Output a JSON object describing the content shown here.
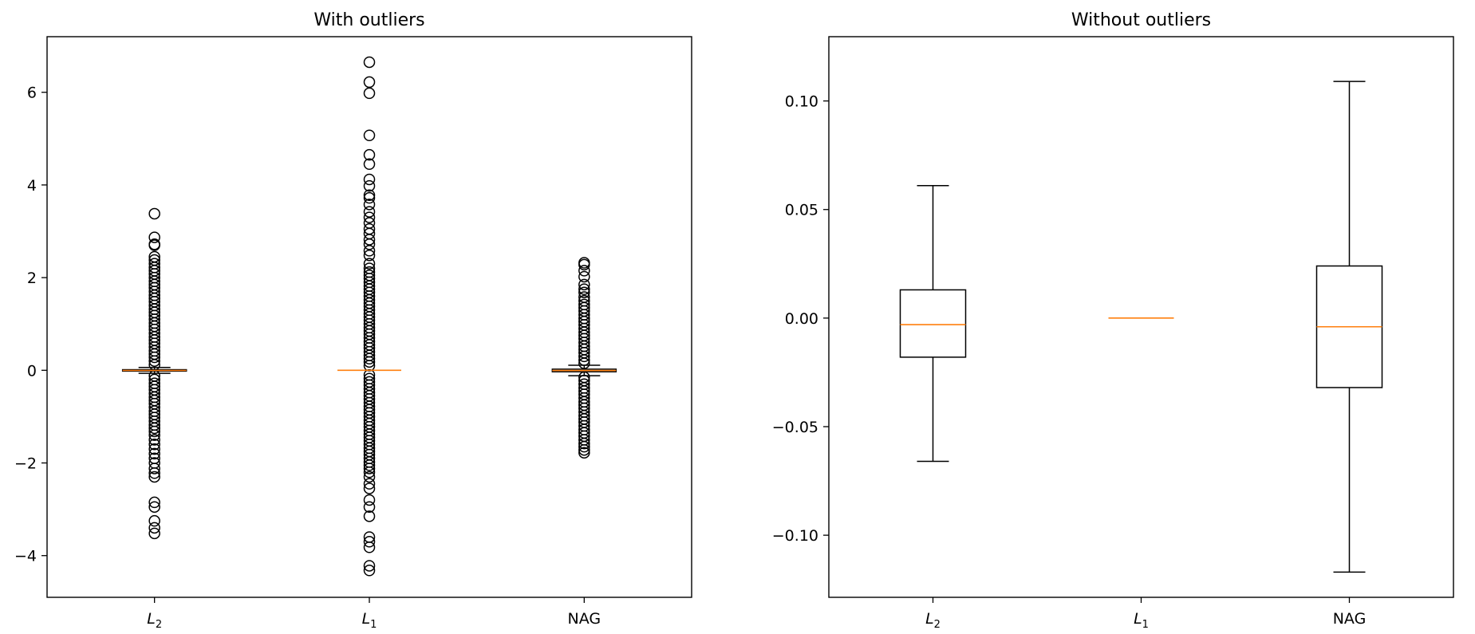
{
  "chart_data": [
    {
      "type": "box",
      "title": "With outliers",
      "xlabel": "",
      "ylabel": "",
      "categories": [
        {
          "base": "L",
          "sub": "2"
        },
        {
          "base": "L",
          "sub": "1"
        },
        {
          "base": "NAG",
          "sub": ""
        }
      ],
      "ylim": [
        -4.9,
        7.2
      ],
      "yticks": [
        -4,
        -2,
        0,
        2,
        4,
        6
      ],
      "ytick_labels": [
        "−4",
        "−2",
        "0",
        "2",
        "4",
        "6"
      ],
      "boxes": [
        {
          "q1": -0.018,
          "median": -0.003,
          "q3": 0.013,
          "whisker_low": -0.066,
          "whisker_high": 0.061,
          "fliers": [
            3.38,
            2.87,
            2.72,
            2.7,
            2.45,
            2.38,
            2.3,
            2.22,
            2.15,
            2.08,
            2.0,
            1.92,
            1.85,
            1.78,
            1.7,
            1.62,
            1.55,
            1.48,
            1.4,
            1.32,
            1.25,
            1.18,
            1.1,
            1.02,
            0.95,
            0.88,
            0.8,
            0.72,
            0.65,
            0.58,
            0.5,
            0.42,
            0.35,
            0.28,
            0.2,
            0.12,
            -0.12,
            -0.2,
            -0.28,
            -0.35,
            -0.42,
            -0.5,
            -0.58,
            -0.65,
            -0.72,
            -0.8,
            -0.88,
            -0.95,
            -1.02,
            -1.1,
            -1.18,
            -1.25,
            -1.32,
            -1.4,
            -1.5,
            -1.6,
            -1.7,
            -1.8,
            -1.9,
            -2.0,
            -2.12,
            -2.22,
            -2.3,
            -2.85,
            -2.95,
            -3.25,
            -3.4,
            -3.52
          ]
        },
        {
          "q1": 0.0,
          "median": 0.0,
          "q3": 0.0,
          "whisker_low": 0.0,
          "whisker_high": 0.0,
          "fliers": [
            6.65,
            6.22,
            5.98,
            5.07,
            4.65,
            4.45,
            4.12,
            3.98,
            3.78,
            3.72,
            3.58,
            3.42,
            3.3,
            3.18,
            3.05,
            2.95,
            2.82,
            2.72,
            2.58,
            2.48,
            2.3,
            2.2,
            2.12,
            2.05,
            1.98,
            1.9,
            1.82,
            1.75,
            1.68,
            1.6,
            1.52,
            1.45,
            1.38,
            1.3,
            1.22,
            1.15,
            1.08,
            1.0,
            0.92,
            0.85,
            0.78,
            0.7,
            0.62,
            0.55,
            0.48,
            0.4,
            0.32,
            0.25,
            0.18,
            0.1,
            -0.1,
            -0.18,
            -0.25,
            -0.32,
            -0.4,
            -0.48,
            -0.55,
            -0.62,
            -0.7,
            -0.78,
            -0.85,
            -0.92,
            -1.0,
            -1.08,
            -1.15,
            -1.22,
            -1.3,
            -1.38,
            -1.45,
            -1.52,
            -1.6,
            -1.68,
            -1.75,
            -1.82,
            -1.9,
            -1.98,
            -2.05,
            -2.12,
            -2.2,
            -2.3,
            -2.45,
            -2.55,
            -2.8,
            -2.95,
            -3.15,
            -3.6,
            -3.7,
            -3.82,
            -4.22,
            -4.32
          ]
        },
        {
          "q1": -0.032,
          "median": -0.004,
          "q3": 0.024,
          "whisker_low": -0.117,
          "whisker_high": 0.109,
          "fliers": [
            2.32,
            2.28,
            2.15,
            2.02,
            1.85,
            1.75,
            1.68,
            1.58,
            1.5,
            1.42,
            1.35,
            1.28,
            1.2,
            1.12,
            1.05,
            0.98,
            0.9,
            0.82,
            0.75,
            0.68,
            0.6,
            0.52,
            0.45,
            0.38,
            0.3,
            0.22,
            0.15,
            -0.15,
            -0.22,
            -0.3,
            -0.38,
            -0.45,
            -0.52,
            -0.6,
            -0.68,
            -0.75,
            -0.82,
            -0.9,
            -0.98,
            -1.05,
            -1.12,
            -1.2,
            -1.28,
            -1.35,
            -1.42,
            -1.5,
            -1.58,
            -1.65,
            -1.72,
            -1.78
          ]
        }
      ],
      "colors": {
        "median": "#ff7f0e",
        "box": "#000000"
      }
    },
    {
      "type": "box",
      "title": "Without outliers",
      "xlabel": "",
      "ylabel": "",
      "categories": [
        {
          "base": "L",
          "sub": "2"
        },
        {
          "base": "L",
          "sub": "1"
        },
        {
          "base": "NAG",
          "sub": ""
        }
      ],
      "ylim": [
        -0.1286,
        0.1296
      ],
      "yticks": [
        -0.1,
        -0.05,
        0.0,
        0.05,
        0.1
      ],
      "ytick_labels": [
        "−0.10",
        "−0.05",
        "0.00",
        "0.05",
        "0.10"
      ],
      "boxes": [
        {
          "q1": -0.018,
          "median": -0.003,
          "q3": 0.013,
          "whisker_low": -0.066,
          "whisker_high": 0.061,
          "fliers": []
        },
        {
          "q1": 0.0,
          "median": 0.0,
          "q3": 0.0,
          "whisker_low": 0.0,
          "whisker_high": 0.0,
          "fliers": []
        },
        {
          "q1": -0.032,
          "median": -0.004,
          "q3": 0.024,
          "whisker_low": -0.117,
          "whisker_high": 0.109,
          "fliers": []
        }
      ],
      "colors": {
        "median": "#ff7f0e",
        "box": "#000000"
      }
    }
  ]
}
